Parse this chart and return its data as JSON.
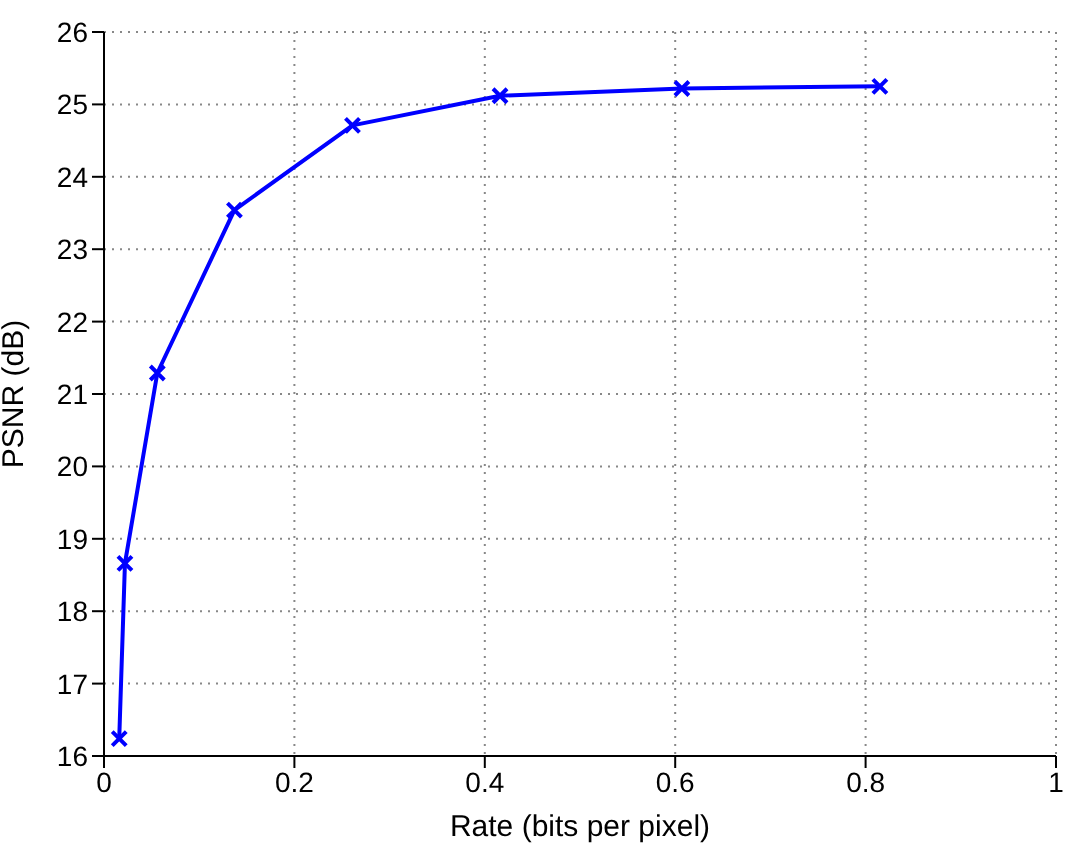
{
  "chart_data": {
    "type": "line",
    "xlabel": "Rate (bits per pixel)",
    "ylabel": "PSNR (dB)",
    "x": [
      0.016,
      0.022,
      0.056,
      0.137,
      0.261,
      0.416,
      0.607,
      0.815
    ],
    "series": [
      {
        "color": "#0000ff",
        "values": [
          16.24,
          18.66,
          21.29,
          23.54,
          24.71,
          25.12,
          25.22,
          25.25
        ]
      }
    ],
    "xlim": [
      0,
      1
    ],
    "xticks": [
      0,
      0.2,
      0.4,
      0.6,
      0.8,
      1
    ],
    "ylim": [
      16,
      26
    ],
    "yticks": [
      16,
      17,
      18,
      19,
      20,
      21,
      22,
      23,
      24,
      25,
      26
    ],
    "grid": true,
    "marker": "cross",
    "line_style": "solid"
  }
}
